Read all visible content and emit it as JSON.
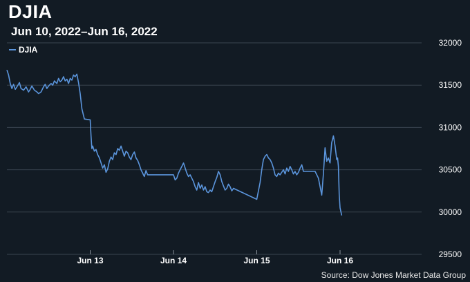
{
  "chart_data": {
    "type": "line",
    "title": "DJIA",
    "subtitle": "Jun 10, 2022–Jun 16, 2022",
    "source": "Source: Dow Jones Market Data Group",
    "line_color": "#5b95dc",
    "background": "#121b24",
    "grid": true,
    "legend_position": "top-left",
    "ylim": [
      29500,
      32000
    ],
    "y_ticks": [
      29500,
      30000,
      30500,
      31000,
      31500,
      32000
    ],
    "y_tick_labels": [
      "29500",
      "30000",
      "30500",
      "31000",
      "31500",
      "32000"
    ],
    "x_range": [
      0,
      4
    ],
    "x_ticks": [
      1,
      2,
      3,
      4
    ],
    "x_tick_labels": [
      "Jun 13",
      "Jun 14",
      "Jun 15",
      "Jun 16"
    ],
    "series": [
      {
        "name": "DJIA",
        "points": [
          [
            0.0,
            31680
          ],
          [
            0.02,
            31620
          ],
          [
            0.04,
            31520
          ],
          [
            0.06,
            31460
          ],
          [
            0.08,
            31510
          ],
          [
            0.1,
            31450
          ],
          [
            0.12,
            31480
          ],
          [
            0.15,
            31530
          ],
          [
            0.17,
            31460
          ],
          [
            0.2,
            31440
          ],
          [
            0.23,
            31480
          ],
          [
            0.26,
            31420
          ],
          [
            0.28,
            31450
          ],
          [
            0.3,
            31490
          ],
          [
            0.33,
            31440
          ],
          [
            0.36,
            31420
          ],
          [
            0.38,
            31400
          ],
          [
            0.41,
            31420
          ],
          [
            0.44,
            31480
          ],
          [
            0.46,
            31510
          ],
          [
            0.48,
            31460
          ],
          [
            0.5,
            31490
          ],
          [
            0.53,
            31520
          ],
          [
            0.55,
            31500
          ],
          [
            0.57,
            31550
          ],
          [
            0.6,
            31520
          ],
          [
            0.62,
            31580
          ],
          [
            0.64,
            31540
          ],
          [
            0.66,
            31560
          ],
          [
            0.68,
            31600
          ],
          [
            0.7,
            31550
          ],
          [
            0.72,
            31570
          ],
          [
            0.74,
            31520
          ],
          [
            0.76,
            31580
          ],
          [
            0.78,
            31560
          ],
          [
            0.8,
            31620
          ],
          [
            0.82,
            31600
          ],
          [
            0.84,
            31630
          ],
          [
            0.86,
            31530
          ],
          [
            0.88,
            31400
          ],
          [
            0.9,
            31220
          ],
          [
            0.93,
            31100
          ],
          [
            1.0,
            31090
          ],
          [
            1.01,
            30900
          ],
          [
            1.02,
            30750
          ],
          [
            1.03,
            30780
          ],
          [
            1.05,
            30720
          ],
          [
            1.07,
            30740
          ],
          [
            1.09,
            30680
          ],
          [
            1.11,
            30640
          ],
          [
            1.13,
            30580
          ],
          [
            1.15,
            30520
          ],
          [
            1.17,
            30560
          ],
          [
            1.19,
            30470
          ],
          [
            1.21,
            30510
          ],
          [
            1.23,
            30600
          ],
          [
            1.25,
            30650
          ],
          [
            1.27,
            30620
          ],
          [
            1.29,
            30700
          ],
          [
            1.31,
            30680
          ],
          [
            1.33,
            30750
          ],
          [
            1.35,
            30730
          ],
          [
            1.37,
            30780
          ],
          [
            1.39,
            30720
          ],
          [
            1.41,
            30660
          ],
          [
            1.43,
            30720
          ],
          [
            1.45,
            30700
          ],
          [
            1.47,
            30650
          ],
          [
            1.49,
            30620
          ],
          [
            1.51,
            30680
          ],
          [
            1.53,
            30710
          ],
          [
            1.55,
            30640
          ],
          [
            1.57,
            30610
          ],
          [
            1.59,
            30560
          ],
          [
            1.61,
            30500
          ],
          [
            1.63,
            30460
          ],
          [
            1.65,
            30420
          ],
          [
            1.67,
            30490
          ],
          [
            1.69,
            30440
          ],
          [
            2.0,
            30440
          ],
          [
            2.02,
            30380
          ],
          [
            2.04,
            30400
          ],
          [
            2.06,
            30460
          ],
          [
            2.08,
            30500
          ],
          [
            2.1,
            30540
          ],
          [
            2.12,
            30580
          ],
          [
            2.14,
            30520
          ],
          [
            2.16,
            30460
          ],
          [
            2.18,
            30420
          ],
          [
            2.2,
            30440
          ],
          [
            2.22,
            30400
          ],
          [
            2.24,
            30360
          ],
          [
            2.26,
            30300
          ],
          [
            2.28,
            30260
          ],
          [
            2.3,
            30350
          ],
          [
            2.32,
            30280
          ],
          [
            2.34,
            30320
          ],
          [
            2.36,
            30260
          ],
          [
            2.38,
            30300
          ],
          [
            2.4,
            30240
          ],
          [
            2.42,
            30230
          ],
          [
            2.44,
            30260
          ],
          [
            2.46,
            30240
          ],
          [
            2.48,
            30300
          ],
          [
            2.5,
            30360
          ],
          [
            2.52,
            30410
          ],
          [
            2.54,
            30480
          ],
          [
            2.56,
            30440
          ],
          [
            2.58,
            30360
          ],
          [
            2.6,
            30310
          ],
          [
            2.62,
            30260
          ],
          [
            2.64,
            30280
          ],
          [
            2.66,
            30330
          ],
          [
            2.68,
            30300
          ],
          [
            2.7,
            30250
          ],
          [
            2.72,
            30280
          ],
          [
            3.0,
            30150
          ],
          [
            3.02,
            30250
          ],
          [
            3.04,
            30350
          ],
          [
            3.06,
            30500
          ],
          [
            3.08,
            30620
          ],
          [
            3.1,
            30660
          ],
          [
            3.12,
            30680
          ],
          [
            3.14,
            30640
          ],
          [
            3.16,
            30620
          ],
          [
            3.18,
            30580
          ],
          [
            3.2,
            30520
          ],
          [
            3.22,
            30440
          ],
          [
            3.24,
            30420
          ],
          [
            3.26,
            30460
          ],
          [
            3.28,
            30440
          ],
          [
            3.3,
            30470
          ],
          [
            3.32,
            30500
          ],
          [
            3.34,
            30450
          ],
          [
            3.36,
            30520
          ],
          [
            3.38,
            30480
          ],
          [
            3.4,
            30540
          ],
          [
            3.42,
            30500
          ],
          [
            3.44,
            30450
          ],
          [
            3.46,
            30480
          ],
          [
            3.48,
            30440
          ],
          [
            3.5,
            30470
          ],
          [
            3.52,
            30520
          ],
          [
            3.54,
            30560
          ],
          [
            3.56,
            30480
          ],
          [
            3.7,
            30480
          ],
          [
            3.72,
            30440
          ],
          [
            3.74,
            30400
          ],
          [
            3.76,
            30300
          ],
          [
            3.78,
            30200
          ],
          [
            3.8,
            30450
          ],
          [
            3.82,
            30760
          ],
          [
            3.84,
            30600
          ],
          [
            3.86,
            30640
          ],
          [
            3.88,
            30580
          ],
          [
            3.9,
            30820
          ],
          [
            3.92,
            30900
          ],
          [
            3.94,
            30780
          ],
          [
            3.96,
            30620
          ],
          [
            3.97,
            30640
          ],
          [
            3.98,
            30540
          ],
          [
            3.99,
            30200
          ],
          [
            4.0,
            30050
          ],
          [
            4.02,
            29960
          ]
        ]
      }
    ]
  }
}
